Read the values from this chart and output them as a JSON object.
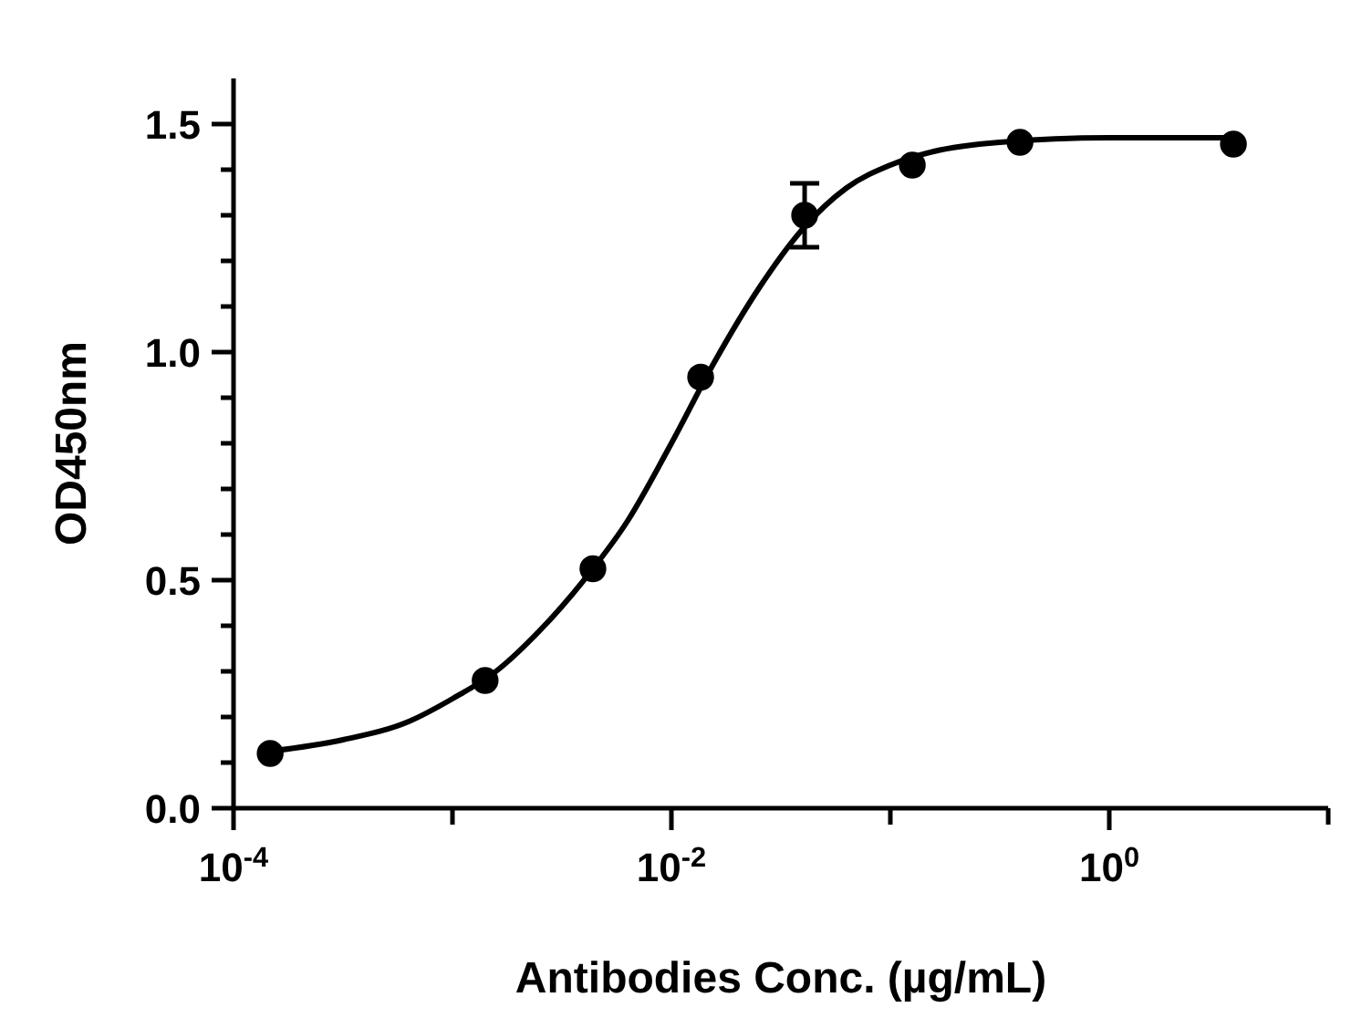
{
  "chart_data": {
    "type": "scatter",
    "xlabel": "Antibodies Conc. (µg/mL)",
    "ylabel": "OD450nm",
    "log": "x",
    "marker": "circle",
    "grid": false,
    "xlim": [
      0.0001,
      10
    ],
    "xticks": [
      {
        "value": 0.0001,
        "label": "10$^{-4}$"
      },
      {
        "value": 0.001,
        "label": null
      },
      {
        "value": 0.01,
        "label": "10$^{-2}$"
      },
      {
        "value": 0.1,
        "label": null
      },
      {
        "value": 1,
        "label": "10$^{0}$"
      },
      {
        "value": 10,
        "label": null
      }
    ],
    "ylim": [
      0,
      1.6
    ],
    "yticks": [
      {
        "value": 0,
        "label": "0.0"
      },
      {
        "value": 0.1,
        "label": null
      },
      {
        "value": 0.2,
        "label": null
      },
      {
        "value": 0.3,
        "label": null
      },
      {
        "value": 0.4,
        "label": null
      },
      {
        "value": 0.5,
        "label": "0.5"
      },
      {
        "value": 0.6,
        "label": null
      },
      {
        "value": 0.7,
        "label": null
      },
      {
        "value": 0.8,
        "label": null
      },
      {
        "value": 0.9,
        "label": null
      },
      {
        "value": 1,
        "label": "1.0"
      },
      {
        "value": 1.1,
        "label": null
      },
      {
        "value": 1.2,
        "label": null
      },
      {
        "value": 1.3,
        "label": null
      },
      {
        "value": 1.4,
        "label": null
      },
      {
        "value": 1.5,
        "label": "1.5"
      }
    ],
    "series": [
      {
        "type": "scatter",
        "color": "#000000",
        "x": [
          0.000147,
          0.00141,
          0.00438,
          0.0136,
          0.0406,
          0.126,
          0.391,
          3.69
        ],
        "values": [
          0.12,
          0.28,
          0.525,
          0.945,
          1.3,
          1.41,
          1.46,
          1.456
        ],
        "errors": [
          null,
          null,
          null,
          null,
          0.07,
          null,
          null,
          null
        ]
      },
      {
        "type": "line",
        "marker": "none",
        "color": "#000000",
        "x": [
          0.000148,
          0.000316,
          0.000631,
          0.001,
          0.00158,
          0.00251,
          0.00398,
          0.00631,
          0.01,
          0.0158,
          0.0251,
          0.0398,
          0.0631,
          0.1,
          0.158,
          0.316,
          1,
          3.7
        ],
        "values": [
          0.125,
          0.15,
          0.19,
          0.24,
          0.3,
          0.39,
          0.5,
          0.63,
          0.8,
          0.98,
          1.14,
          1.27,
          1.36,
          1.41,
          1.44,
          1.46,
          1.47,
          1.47
        ]
      }
    ]
  }
}
